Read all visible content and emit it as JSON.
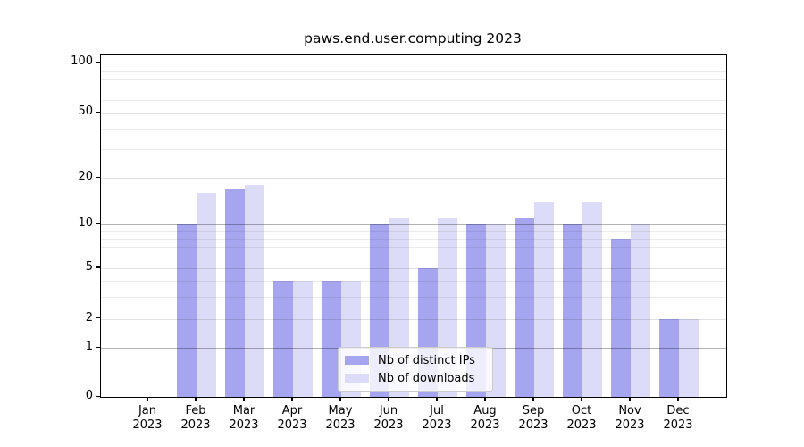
{
  "chart_data": {
    "type": "bar",
    "title": "paws.end.user.computing 2023",
    "categories": [
      "Jan",
      "Feb",
      "Mar",
      "Apr",
      "May",
      "Jun",
      "Jul",
      "Aug",
      "Sep",
      "Oct",
      "Nov",
      "Dec"
    ],
    "category_year": "2023",
    "series": [
      {
        "name": "Nb of distinct IPs",
        "color": "#a6a6f0",
        "values": [
          0,
          10,
          17,
          4,
          4,
          10,
          5,
          10,
          11,
          10,
          8,
          2
        ]
      },
      {
        "name": "Nb of downloads",
        "color": "#dcdcf8",
        "values": [
          0,
          16,
          18,
          4,
          4,
          11,
          11,
          10,
          14,
          14,
          10,
          2
        ]
      }
    ],
    "y_axis": {
      "scale": "symlog-like",
      "tick_values": [
        100,
        50,
        20,
        10,
        5,
        2,
        1,
        0
      ],
      "minor_tick_values": [
        90,
        80,
        70,
        60,
        40,
        30,
        9,
        8,
        7,
        6,
        4,
        3
      ],
      "range": [
        0,
        113
      ]
    },
    "x_axis": {
      "year_row": "2023"
    },
    "legend": {
      "entries": [
        "Nb of distinct IPs",
        "Nb of downloads"
      ],
      "position": "lower center"
    },
    "grid": true,
    "colors": {
      "background": "#ffffff",
      "grid_major": "#b3b3b3",
      "grid_minor": "#ebebeb"
    }
  }
}
